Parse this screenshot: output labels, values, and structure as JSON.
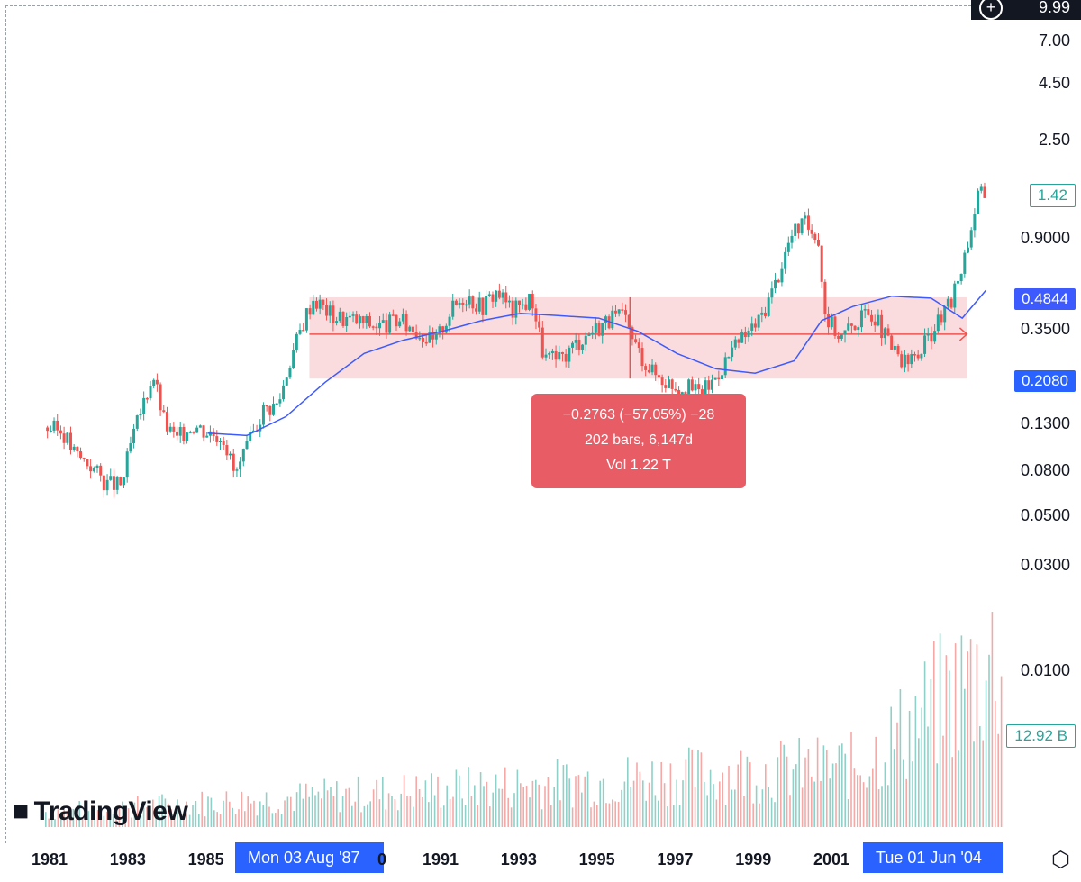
{
  "chart_data": {
    "type": "candlestick",
    "scale": "log",
    "price_axis_ticks": [
      "7.00",
      "4.50",
      "2.50",
      "1.42",
      "0.9000",
      "0.4844",
      "0.3500",
      "0.2080",
      "0.1300",
      "0.0800",
      "0.0500",
      "0.0300",
      "0.0100"
    ],
    "tick_values": [
      7.0,
      4.5,
      2.5,
      0.9,
      0.35,
      0.13,
      0.08,
      0.05,
      0.03,
      0.01
    ],
    "time_axis_labels": [
      "1981",
      "1983",
      "1985",
      "1991",
      "1993",
      "1995",
      "1997",
      "1999",
      "2001"
    ],
    "time_axis_years": [
      1981,
      1983,
      1985,
      1991,
      1993,
      1995,
      1997,
      1999,
      2001
    ],
    "ohlc_approx": [
      {
        "year": 1980.9,
        "close": 0.125
      },
      {
        "year": 1981.3,
        "close": 0.12
      },
      {
        "year": 1981.6,
        "close": 0.095
      },
      {
        "year": 1982.0,
        "close": 0.085
      },
      {
        "year": 1982.4,
        "close": 0.07
      },
      {
        "year": 1982.8,
        "close": 0.068
      },
      {
        "year": 1983.0,
        "close": 0.1
      },
      {
        "year": 1983.3,
        "close": 0.15
      },
      {
        "year": 1983.6,
        "close": 0.22
      },
      {
        "year": 1983.9,
        "close": 0.13
      },
      {
        "year": 1984.2,
        "close": 0.11
      },
      {
        "year": 1984.6,
        "close": 0.13
      },
      {
        "year": 1985.0,
        "close": 0.12
      },
      {
        "year": 1985.4,
        "close": 0.115
      },
      {
        "year": 1985.7,
        "close": 0.075
      },
      {
        "year": 1986.0,
        "close": 0.1
      },
      {
        "year": 1986.4,
        "close": 0.15
      },
      {
        "year": 1986.8,
        "close": 0.16
      },
      {
        "year": 1987.1,
        "close": 0.25
      },
      {
        "year": 1987.5,
        "close": 0.4
      },
      {
        "year": 1987.7,
        "close": 0.48
      },
      {
        "year": 1988.2,
        "close": 0.4
      },
      {
        "year": 1988.8,
        "close": 0.38
      },
      {
        "year": 1989.4,
        "close": 0.36
      },
      {
        "year": 1989.9,
        "close": 0.38
      },
      {
        "year": 1990.4,
        "close": 0.34
      },
      {
        "year": 1990.8,
        "close": 0.3
      },
      {
        "year": 1991.2,
        "close": 0.42
      },
      {
        "year": 1991.6,
        "close": 0.5
      },
      {
        "year": 1992.0,
        "close": 0.44
      },
      {
        "year": 1992.4,
        "close": 0.52
      },
      {
        "year": 1992.8,
        "close": 0.42
      },
      {
        "year": 1993.3,
        "close": 0.48
      },
      {
        "year": 1993.6,
        "close": 0.26
      },
      {
        "year": 1994.0,
        "close": 0.25
      },
      {
        "year": 1994.4,
        "close": 0.3
      },
      {
        "year": 1994.8,
        "close": 0.34
      },
      {
        "year": 1995.2,
        "close": 0.38
      },
      {
        "year": 1995.6,
        "close": 0.4
      },
      {
        "year": 1996.0,
        "close": 0.28
      },
      {
        "year": 1996.4,
        "close": 0.22
      },
      {
        "year": 1996.8,
        "close": 0.2
      },
      {
        "year": 1997.2,
        "close": 0.19
      },
      {
        "year": 1997.6,
        "close": 0.18
      },
      {
        "year": 1997.9,
        "close": 0.2
      },
      {
        "year": 1998.3,
        "close": 0.26
      },
      {
        "year": 1998.7,
        "close": 0.32
      },
      {
        "year": 1999.1,
        "close": 0.38
      },
      {
        "year": 1999.5,
        "close": 0.55
      },
      {
        "year": 1999.9,
        "close": 0.9
      },
      {
        "year": 2000.2,
        "close": 1.05
      },
      {
        "year": 2000.6,
        "close": 0.95
      },
      {
        "year": 2000.8,
        "close": 0.4
      },
      {
        "year": 2001.2,
        "close": 0.32
      },
      {
        "year": 2001.6,
        "close": 0.38
      },
      {
        "year": 2002.0,
        "close": 0.42
      },
      {
        "year": 2002.4,
        "close": 0.3
      },
      {
        "year": 2002.8,
        "close": 0.24
      },
      {
        "year": 2003.2,
        "close": 0.27
      },
      {
        "year": 2003.6,
        "close": 0.36
      },
      {
        "year": 2004.0,
        "close": 0.45
      },
      {
        "year": 2004.4,
        "close": 0.8
      },
      {
        "year": 2004.7,
        "close": 1.4
      },
      {
        "year": 2004.9,
        "close": 1.42
      }
    ],
    "moving_average_approx": [
      {
        "year": 1985.0,
        "value": 0.118
      },
      {
        "year": 1986.0,
        "value": 0.115
      },
      {
        "year": 1987.0,
        "value": 0.14
      },
      {
        "year": 1988.0,
        "value": 0.2
      },
      {
        "year": 1989.0,
        "value": 0.27
      },
      {
        "year": 1990.0,
        "value": 0.31
      },
      {
        "year": 1991.0,
        "value": 0.34
      },
      {
        "year": 1992.0,
        "value": 0.38
      },
      {
        "year": 1993.0,
        "value": 0.41
      },
      {
        "year": 1994.0,
        "value": 0.4
      },
      {
        "year": 1995.0,
        "value": 0.39
      },
      {
        "year": 1996.0,
        "value": 0.34
      },
      {
        "year": 1997.0,
        "value": 0.27
      },
      {
        "year": 1998.0,
        "value": 0.23
      },
      {
        "year": 1999.0,
        "value": 0.22
      },
      {
        "year": 2000.0,
        "value": 0.25
      },
      {
        "year": 2000.7,
        "value": 0.38
      },
      {
        "year": 2001.5,
        "value": 0.44
      },
      {
        "year": 2002.5,
        "value": 0.49
      },
      {
        "year": 2003.5,
        "value": 0.48
      },
      {
        "year": 2004.3,
        "value": 0.39
      },
      {
        "year": 2004.9,
        "value": 0.52
      }
    ],
    "measure_range": {
      "from_year": 1987.6,
      "to_year": 2004.42,
      "high": 0.4844,
      "low": 0.208,
      "mid": 0.33
    }
  },
  "labels": {
    "top_value": "9.99",
    "last_price": "1.42",
    "ma_value": "0.4844",
    "range_low": "0.2080",
    "volume_value": "12.92 B",
    "measure_line1": "−0.2763 (−57.05%) −28",
    "measure_line2": "202 bars, 6,147d",
    "measure_line3": "Vol 1.22 T",
    "date_start": "Mon 03 Aug '87",
    "date_end": "Tue 01 Jun '04",
    "date_start_suffix": "0",
    "logo_text": "TradingView"
  },
  "colors": {
    "up": "#26a69a",
    "down": "#ef5350",
    "ma": "#3d5afe",
    "range_fill": "#f8c9cc",
    "accent": "#2962ff"
  }
}
